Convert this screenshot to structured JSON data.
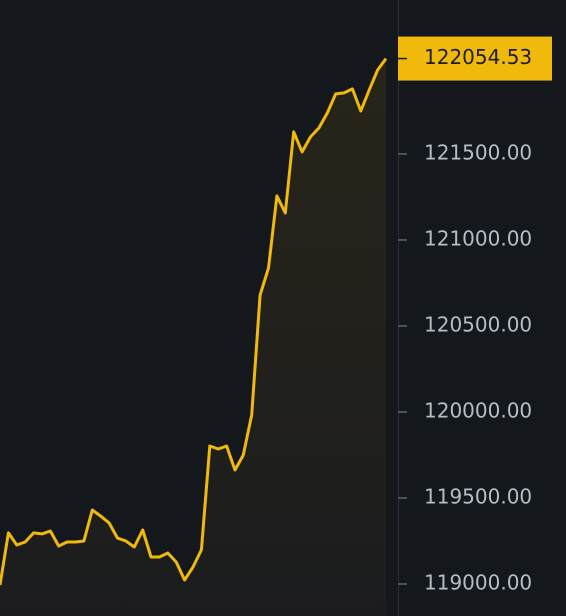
{
  "chart_data": {
    "type": "area",
    "values": [
      118994,
      119297,
      119227,
      119244,
      119297,
      119291,
      119308,
      119221,
      119244,
      119244,
      119250,
      119430,
      119395,
      119355,
      119267,
      119250,
      119215,
      119314,
      119157,
      119157,
      119180,
      119128,
      119023,
      119099,
      119198,
      119802,
      119785,
      119802,
      119663,
      119750,
      119983,
      120680,
      120837,
      121256,
      121157,
      121628,
      121512,
      121599,
      121651,
      121738,
      121849,
      121855,
      121878,
      121750,
      121872,
      121988,
      122054.53
    ],
    "last_value_label": "122054.53",
    "color": "#f0b90b",
    "ylim": [
      118814,
      122395
    ],
    "yticks": [
      {
        "value": 119000,
        "label": "119000.00"
      },
      {
        "value": 119500,
        "label": "119500.00"
      },
      {
        "value": 120000,
        "label": "120000.00"
      },
      {
        "value": 120500,
        "label": "120500.00"
      },
      {
        "value": 121000,
        "label": "121000.00"
      },
      {
        "value": 121500,
        "label": "121500.00"
      }
    ],
    "grid": false
  }
}
